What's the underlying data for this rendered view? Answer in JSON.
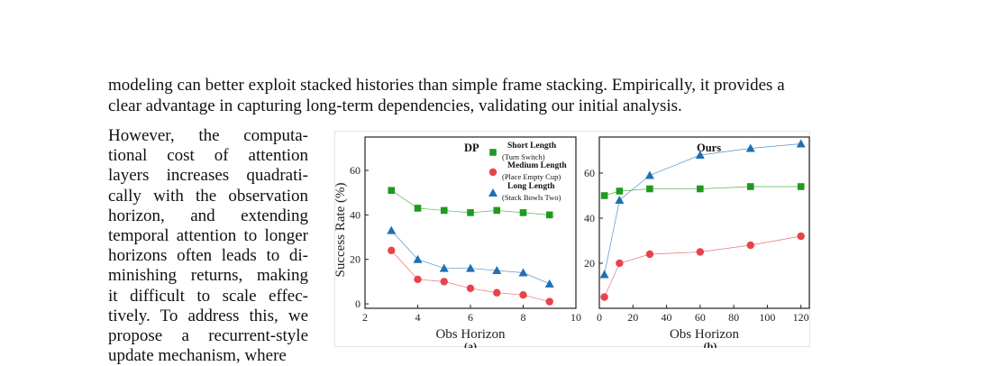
{
  "paragraph_lead": {
    "lines": [
      "modeling can better exploit stacked histories than simple frame stacking. Empirically, it provides a",
      "clear advantage in capturing long-term dependencies, validating our initial analysis."
    ]
  },
  "paragraph_wrap": {
    "lines": [
      "However, the computa-",
      "tional cost of attention",
      "layers increases quadrati-",
      "cally with the observation",
      "horizon, and extending",
      "temporal attention to longer",
      "horizons often leads to di-",
      "minishing returns, making",
      "it difficult to scale effec-",
      "tively. To address this, we",
      "propose a recurrent-style",
      "update mechanism, where"
    ]
  },
  "chart_data": [
    {
      "panel": "(a)",
      "type": "scatter",
      "title": "DP",
      "xlabel": "Obs Horizon",
      "ylabel": "Success Rate (%)",
      "xlim": [
        2,
        10
      ],
      "ylim": [
        -2,
        75
      ],
      "xticks": [
        2,
        4,
        6,
        8,
        10
      ],
      "yticks": [
        0,
        20,
        40,
        60
      ],
      "legend_position": "top-right",
      "series": [
        {
          "name": "Short Length",
          "subname": "(Turn Switch)",
          "color": "#1f9a1f",
          "marker": "square",
          "x": [
            3,
            4,
            5,
            6,
            7,
            8,
            9
          ],
          "values": [
            51,
            43,
            42,
            41,
            42,
            41,
            40
          ]
        },
        {
          "name": "Medium Length",
          "subname": "(Place Empty Cup)",
          "color": "#e8434b",
          "marker": "circle",
          "x": [
            3,
            4,
            5,
            6,
            7,
            8,
            9
          ],
          "values": [
            24,
            11,
            10,
            7,
            5,
            4,
            1
          ]
        },
        {
          "name": "Long Length",
          "subname": "(Stack Bowls Two)",
          "color": "#1f6fb5",
          "marker": "triangle",
          "x": [
            3,
            4,
            5,
            6,
            7,
            8,
            9
          ],
          "values": [
            33,
            20,
            16,
            16,
            15,
            14,
            9
          ]
        }
      ]
    },
    {
      "panel": "(b)",
      "type": "scatter",
      "title": "Ours",
      "xlabel": "Obs Horizon",
      "ylabel": "",
      "xlim": [
        0,
        125
      ],
      "ylim": [
        0,
        76
      ],
      "xticks": [
        0,
        20,
        40,
        60,
        80,
        100,
        120
      ],
      "yticks": [
        20,
        40,
        60
      ],
      "series": [
        {
          "color": "#1f9a1f",
          "marker": "square",
          "x": [
            3,
            12,
            30,
            60,
            90,
            120
          ],
          "values": [
            50,
            52,
            53,
            53,
            54,
            54
          ]
        },
        {
          "color": "#e8434b",
          "marker": "circle",
          "x": [
            3,
            12,
            30,
            60,
            90,
            120
          ],
          "values": [
            5,
            20,
            24,
            25,
            28,
            32
          ]
        },
        {
          "color": "#1f6fb5",
          "marker": "triangle",
          "x": [
            3,
            12,
            30,
            60,
            90,
            120
          ],
          "values": [
            15,
            48,
            59,
            68,
            71,
            73
          ]
        }
      ]
    }
  ]
}
